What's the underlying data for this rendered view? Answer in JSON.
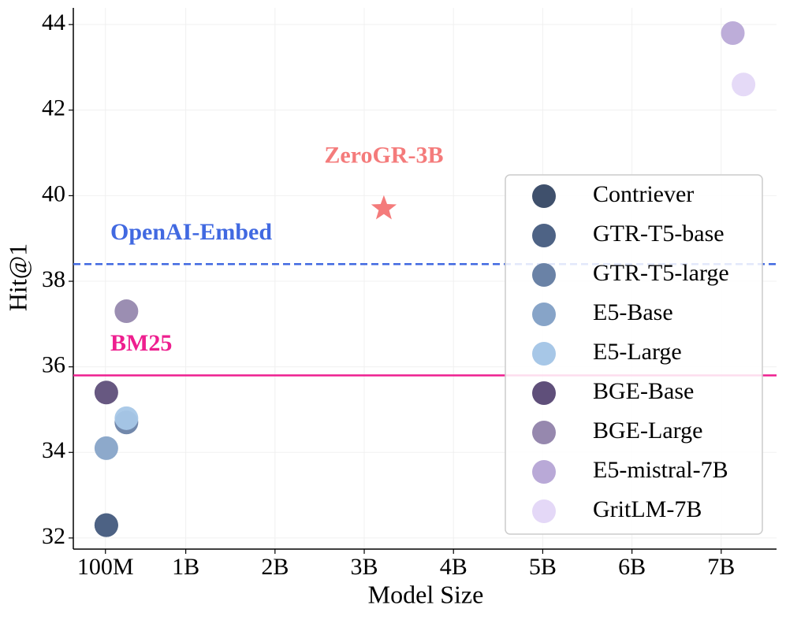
{
  "chart_data": {
    "type": "scatter",
    "xlabel": "Model Size",
    "ylabel": "Hit@1",
    "xlim": [
      -0.26,
      7.62
    ],
    "ylim": [
      31.74,
      44.39
    ],
    "xticks": [
      {
        "value": 0.1,
        "label": "100M"
      },
      {
        "value": 1,
        "label": "1B"
      },
      {
        "value": 2,
        "label": "2B"
      },
      {
        "value": 3,
        "label": "3B"
      },
      {
        "value": 4,
        "label": "4B"
      },
      {
        "value": 5,
        "label": "5B"
      },
      {
        "value": 6,
        "label": "6B"
      },
      {
        "value": 7,
        "label": "7B"
      }
    ],
    "yticks": [
      32,
      34,
      36,
      38,
      40,
      42,
      44
    ],
    "grid": true,
    "legend": "right",
    "series": [
      {
        "name": "Contriever",
        "color": "#3f506c",
        "x": [
          0.11
        ],
        "values": [
          32.3
        ]
      },
      {
        "name": "GTR-T5-base",
        "color": "#4e6385",
        "x": [
          0.11
        ],
        "values": [
          32.3
        ]
      },
      {
        "name": "GTR-T5-large",
        "color": "#6a82a6",
        "x": [
          0.335
        ],
        "values": [
          34.7
        ]
      },
      {
        "name": "E5-Base",
        "color": "#87a4c8",
        "x": [
          0.11
        ],
        "values": [
          34.1
        ]
      },
      {
        "name": "E5-Large",
        "color": "#a7c7e7",
        "x": [
          0.335
        ],
        "values": [
          34.8
        ]
      },
      {
        "name": "BGE-Base",
        "color": "#5f4f7a",
        "x": [
          0.11
        ],
        "values": [
          35.4
        ]
      },
      {
        "name": "BGE-Large",
        "color": "#9688ae",
        "x": [
          0.335
        ],
        "values": [
          37.3
        ]
      },
      {
        "name": "E5-mistral-7B",
        "color": "#b9a9d7",
        "x": [
          7.13
        ],
        "values": [
          43.8
        ]
      },
      {
        "name": "GritLM-7B",
        "color": "#e4d8f7",
        "x": [
          7.25
        ],
        "values": [
          42.6
        ]
      }
    ],
    "highlight": {
      "label": "ZeroGR-3B",
      "color": "#f47b7b",
      "x": 3.22,
      "value": 39.7
    },
    "hlines": [
      {
        "label": "OpenAI-Embed",
        "color": "#4169e1",
        "value": 38.4,
        "style": "dashed"
      },
      {
        "label": "BM25",
        "color": "#ee1f8f",
        "value": 35.8,
        "style": "solid"
      }
    ]
  }
}
